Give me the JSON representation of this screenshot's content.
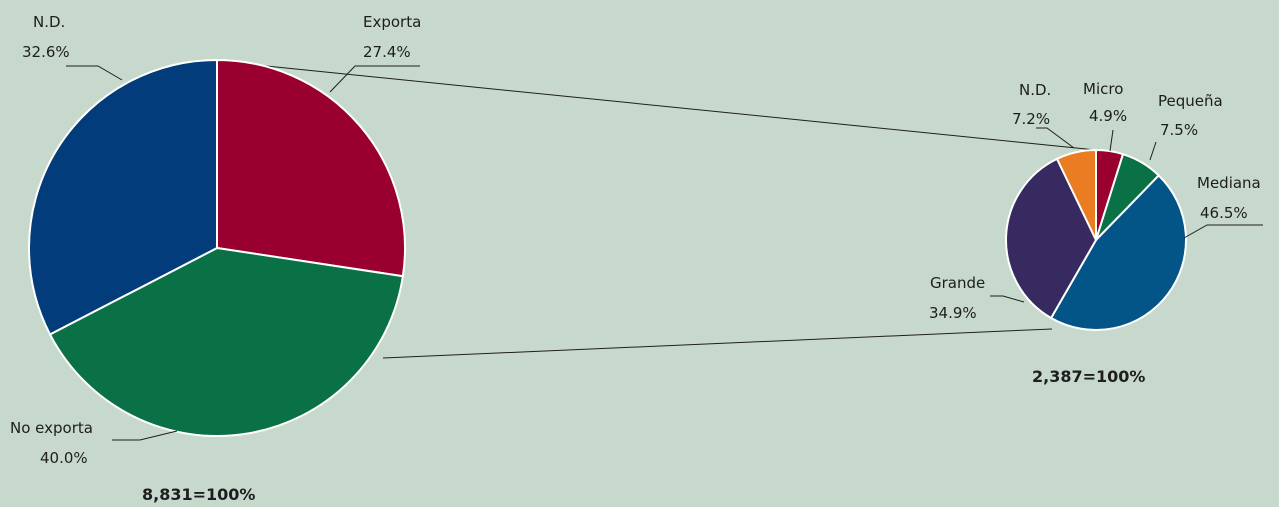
{
  "chart_data": [
    {
      "type": "pie",
      "total_label": "8,831=100%",
      "slices": [
        {
          "key": "exporta",
          "name": "Exporta",
          "value": 27.4,
          "label": "27.4%",
          "color": "#990030"
        },
        {
          "key": "no-exporta",
          "name": "No exporta",
          "value": 40.0,
          "label": "40.0%",
          "color": "#0a7045"
        },
        {
          "key": "nd",
          "name": "N.D.",
          "value": 32.6,
          "label": "32.6%",
          "color": "#023c7a"
        }
      ]
    },
    {
      "type": "pie",
      "total_label": "2,387=100%",
      "slices": [
        {
          "key": "micro",
          "name": "Micro",
          "value": 4.9,
          "label": "4.9%",
          "color": "#990030"
        },
        {
          "key": "pequena",
          "name": "Pequeña",
          "value": 7.5,
          "label": "7.5%",
          "color": "#0a7045"
        },
        {
          "key": "mediana",
          "name": "Mediana",
          "value": 46.5,
          "label": "46.5%",
          "color": "#035487"
        },
        {
          "key": "grande",
          "name": "Grande",
          "value": 34.9,
          "label": "34.9%",
          "color": "#362a60"
        },
        {
          "key": "nd",
          "name": "N.D.",
          "value": 7.2,
          "label": "7.2%",
          "color": "#ea7c21"
        }
      ]
    }
  ]
}
